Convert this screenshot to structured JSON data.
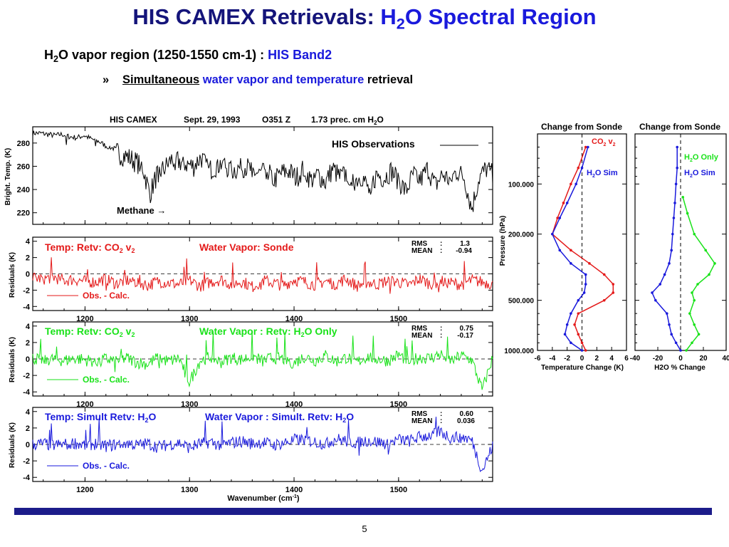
{
  "slide": {
    "title_main": "HIS CAMEX Retrievals: ",
    "title_h": "H",
    "title_sub": "2",
    "title_rest": "O Spectral Region",
    "bullet1_h": "H",
    "bullet1_sub": "2",
    "bullet1_rest": "O vapor region (1250-1550 cm-1) : ",
    "bullet1_band": "HIS Band2",
    "bullet2_marker": "»",
    "bullet2_underlined": "Simultaneous",
    "bullet2_blue": " water vapor and temperature",
    "bullet2_rest": " retrieval",
    "page_number": "5",
    "colors": {
      "title": "#14147a",
      "blue": "#1a1adc",
      "red": "#e41a1a",
      "green": "#1ae21a",
      "bar": "#1c1c8a"
    }
  },
  "chart_data": [
    {
      "type": "line",
      "panel": "brightness-temperature",
      "title": "HIS CAMEX     Sept. 29, 1993  O351 Z     1.73 prec. cm H2O",
      "ylabel": "Bright. Temp. (K)",
      "xlabel": "",
      "xlim": [
        1150,
        1590
      ],
      "ylim": [
        210,
        294
      ],
      "yticks": [
        220,
        240,
        260,
        280
      ],
      "series": [
        {
          "name": "HIS Observations",
          "color": "#000000",
          "x": [
            1150,
            1157,
            1164,
            1171,
            1178,
            1185,
            1192,
            1199,
            1206,
            1213,
            1220,
            1227,
            1234,
            1241,
            1248,
            1255,
            1262,
            1269,
            1276,
            1283,
            1290,
            1297,
            1304,
            1311,
            1318,
            1325,
            1332,
            1339,
            1346,
            1353,
            1360,
            1367,
            1374,
            1381,
            1388,
            1395,
            1402,
            1409,
            1416,
            1423,
            1430,
            1437,
            1444,
            1451,
            1458,
            1465,
            1472,
            1479,
            1486,
            1493,
            1500,
            1507,
            1514,
            1521,
            1528,
            1535,
            1542,
            1549,
            1556,
            1563,
            1570,
            1577,
            1584,
            1590
          ],
          "y": [
            289,
            289,
            288,
            287,
            288,
            286,
            285,
            287,
            284,
            282,
            278,
            276,
            272,
            270,
            266,
            262,
            238,
            255,
            260,
            268,
            266,
            264,
            262,
            270,
            258,
            262,
            265,
            258,
            260,
            262,
            258,
            255,
            260,
            250,
            256,
            258,
            252,
            260,
            250,
            255,
            248,
            260,
            252,
            256,
            250,
            254,
            240,
            255,
            252,
            258,
            250,
            240,
            255,
            250,
            260,
            245,
            255,
            250,
            258,
            252,
            225,
            252,
            260,
            255
          ]
        }
      ],
      "annotations": [
        "HIS Observations",
        "Methane →"
      ]
    },
    {
      "type": "line",
      "panel": "residuals-1",
      "title": "Temp: Retv: CO2 v2          Water Vapor: Sonde",
      "ylabel": "Residuals (K)",
      "xlim": [
        1150,
        1590
      ],
      "ylim": [
        -4.5,
        4.5
      ],
      "yticks": [
        -4,
        -2,
        0,
        2,
        4
      ],
      "legend": "Obs. -  Calc.",
      "rms": "1.3",
      "mean": "-0.94",
      "series": [
        {
          "name": "Obs. - Calc.",
          "color": "#e41a1a",
          "x": [
            1150,
            1160,
            1170,
            1180,
            1190,
            1200,
            1210,
            1220,
            1230,
            1240,
            1250,
            1260,
            1270,
            1280,
            1290,
            1300,
            1310,
            1320,
            1330,
            1340,
            1350,
            1360,
            1370,
            1380,
            1390,
            1400,
            1410,
            1420,
            1430,
            1440,
            1450,
            1460,
            1470,
            1480,
            1490,
            1500,
            1510,
            1520,
            1530,
            1540,
            1550,
            1560,
            1570,
            1580,
            1590
          ],
          "y": [
            -0.5,
            -0.6,
            -0.4,
            -0.8,
            -0.7,
            -0.9,
            -1.0,
            -0.6,
            -1.2,
            -0.8,
            -1.0,
            -1.4,
            -0.9,
            -1.1,
            -1.3,
            -0.8,
            -1.5,
            -1.0,
            -0.7,
            -1.3,
            -0.9,
            -1.6,
            -0.8,
            -1.1,
            -1.4,
            -0.7,
            -1.0,
            -1.3,
            -0.9,
            -1.2,
            -0.6,
            -1.5,
            -1.0,
            -1.3,
            -0.8,
            -1.0,
            -1.4,
            -0.6,
            -1.2,
            -0.9,
            -1.1,
            -1.3,
            -0.8,
            -1.0,
            -1.2
          ]
        }
      ]
    },
    {
      "type": "line",
      "panel": "residuals-2",
      "title": "Temp: Retv: CO2 v2          Water Vapor : Retv: H2O Only",
      "ylabel": "Residuals (K)",
      "xlim": [
        1150,
        1590
      ],
      "ylim": [
        -4.5,
        4.5
      ],
      "yticks": [
        -4,
        -2,
        0,
        2,
        4
      ],
      "legend": "Obs. - Calc.",
      "rms": "0.75",
      "mean": "-0.17",
      "series": [
        {
          "name": "Obs. - Calc.",
          "color": "#1ae21a",
          "x": [
            1150,
            1160,
            1170,
            1180,
            1190,
            1200,
            1210,
            1220,
            1230,
            1240,
            1250,
            1260,
            1270,
            1280,
            1290,
            1300,
            1310,
            1320,
            1330,
            1340,
            1350,
            1360,
            1370,
            1380,
            1390,
            1400,
            1410,
            1420,
            1430,
            1440,
            1450,
            1460,
            1470,
            1480,
            1490,
            1500,
            1510,
            1520,
            1530,
            1540,
            1550,
            1560,
            1570,
            1580,
            1590
          ],
          "y": [
            0.1,
            -0.1,
            0.0,
            -0.2,
            0.1,
            -0.1,
            -0.3,
            0.0,
            -0.2,
            0.1,
            -0.4,
            -0.6,
            0.2,
            -0.3,
            0.1,
            -2.8,
            -0.2,
            0.3,
            -0.4,
            0.2,
            -0.1,
            0.4,
            -0.3,
            0.2,
            0.0,
            -0.5,
            0.3,
            -0.2,
            0.4,
            -0.3,
            0.2,
            -0.4,
            0.3,
            0.0,
            -0.2,
            0.5,
            -0.3,
            0.2,
            0.1,
            0.6,
            -0.2,
            0.4,
            -0.1,
            -3.8,
            0.2
          ]
        }
      ]
    },
    {
      "type": "line",
      "panel": "residuals-3",
      "title": "Temp: Simult Retv:  H2O     Water Vapor : Simult. Retv: H2O",
      "ylabel": "Residuals (K)",
      "xlabel": "Wavenumber (cm-1)",
      "xlim": [
        1150,
        1590
      ],
      "ylim": [
        -4.5,
        4.5
      ],
      "yticks": [
        -4,
        -2,
        0,
        2,
        4
      ],
      "xticks": [
        1200,
        1300,
        1400,
        1500
      ],
      "legend": "Obs. - Calc.",
      "rms": "0.60",
      "mean": "0.036",
      "series": [
        {
          "name": "Obs. - Calc.",
          "color": "#1a1adc",
          "x": [
            1150,
            1160,
            1170,
            1180,
            1190,
            1200,
            1210,
            1220,
            1230,
            1240,
            1250,
            1260,
            1270,
            1280,
            1290,
            1300,
            1310,
            1320,
            1330,
            1340,
            1350,
            1360,
            1370,
            1380,
            1390,
            1400,
            1410,
            1420,
            1430,
            1440,
            1450,
            1460,
            1470,
            1480,
            1490,
            1500,
            1510,
            1520,
            1530,
            1540,
            1550,
            1560,
            1570,
            1580,
            1590
          ],
          "y": [
            0.0,
            0.1,
            -0.1,
            0.0,
            0.2,
            -0.1,
            0.1,
            -0.2,
            0.0,
            0.2,
            -0.1,
            0.1,
            -0.3,
            0.0,
            0.2,
            -0.4,
            0.1,
            0.3,
            -0.1,
            0.2,
            0.4,
            0.1,
            0.3,
            -0.1,
            0.2,
            0.5,
            0.6,
            0.3,
            0.1,
            0.7,
            0.4,
            0.2,
            0.5,
            0.3,
            0.1,
            0.6,
            0.4,
            0.9,
            1.1,
            1.6,
            0.8,
            1.0,
            0.5,
            -3.2,
            -0.2
          ]
        }
      ]
    },
    {
      "type": "line",
      "panel": "temperature-change-profile",
      "title": "Change from Sonde",
      "ylabel": "Pressure (hPa)",
      "xlabel": "Temperature Change (K)",
      "xlim": [
        -6,
        6
      ],
      "ylim": [
        1000,
        50
      ],
      "yscale": "log",
      "yticks": [
        100,
        200,
        500,
        1000
      ],
      "ytick_labels": [
        "100.000",
        "200.000",
        "500.000",
        "1000.000"
      ],
      "xticks": [
        -6,
        -4,
        -2,
        0,
        2,
        4,
        6
      ],
      "xtick_labels": [
        "-6",
        "-4",
        "-2",
        "0",
        "2",
        "4",
        "6"
      ],
      "series": [
        {
          "name": "CO2 v2",
          "color": "#e41a1a",
          "pressure": [
            60,
            80,
            100,
            130,
            160,
            200,
            250,
            300,
            350,
            400,
            450,
            500,
            600,
            700,
            800,
            900,
            1000
          ],
          "value": [
            0.5,
            -0.5,
            -1.5,
            -2.5,
            -3.3,
            -4.0,
            -1.5,
            1.0,
            3.0,
            4.2,
            4.2,
            3.0,
            -0.5,
            -1.0,
            -0.5,
            0.0,
            0.5
          ]
        },
        {
          "name": "H2O Sim",
          "color": "#1a1adc",
          "pressure": [
            60,
            80,
            100,
            130,
            160,
            200,
            250,
            300,
            350,
            400,
            450,
            500,
            600,
            700,
            800,
            900,
            1000
          ],
          "value": [
            0.8,
            0.0,
            -0.8,
            -2.0,
            -3.0,
            -4.0,
            -3.0,
            -1.5,
            0.5,
            0.5,
            0.3,
            -0.5,
            -1.5,
            -2.0,
            -2.3,
            -1.5,
            0.0
          ]
        }
      ]
    },
    {
      "type": "line",
      "panel": "h2o-change-profile",
      "title": "Change from Sonde",
      "xlabel": "H2O %  Change",
      "xlim": [
        -40,
        40
      ],
      "ylim": [
        1000,
        50
      ],
      "yscale": "log",
      "xticks": [
        -40,
        -20,
        0,
        20,
        40
      ],
      "xtick_labels": [
        "-40",
        "-20",
        "0",
        "20",
        "40"
      ],
      "series": [
        {
          "name": "H2O Only",
          "color": "#1ae21a",
          "pressure": [
            120,
            150,
            200,
            250,
            300,
            350,
            400,
            450,
            500,
            600,
            700,
            800,
            900,
            1000
          ],
          "value": [
            2,
            6,
            12,
            22,
            30,
            25,
            15,
            10,
            12,
            8,
            12,
            16,
            10,
            5
          ]
        },
        {
          "name": "H2O Sim",
          "color": "#1a1adc",
          "pressure": [
            60,
            80,
            100,
            130,
            160,
            200,
            250,
            300,
            350,
            400,
            450,
            500,
            600,
            700,
            800,
            900,
            1000
          ],
          "value": [
            -3,
            -3,
            -4,
            -5,
            -6,
            -7,
            -8,
            -10,
            -14,
            -18,
            -25,
            -22,
            -12,
            -10,
            -8,
            -4,
            0
          ]
        }
      ]
    }
  ],
  "labels": {
    "panel1_title_a": "HIS CAMEX",
    "panel1_title_b": "Sept. 29, 1993",
    "panel1_title_c": "O351 Z",
    "panel1_title_d": "1.73 prec. cm H",
    "panel1_title_d_sub": "2",
    "panel1_title_d_end": "O",
    "panel1_ylabel": "Bright. Temp. (K)",
    "his_obs": "HIS Observations",
    "methane": "Methane →",
    "res_ylabel": "Residuals (K)",
    "p2_temp": "Temp: Retv: CO",
    "p2_temp_sub": "2",
    "p2_temp_end": " v",
    "p2_temp_end_sub": "2",
    "p2_wv": "Water Vapor: Sonde",
    "p2_legend": "Obs. -  Calc.",
    "p3_temp": "Temp: Retv: CO",
    "p3_temp_sub": "2",
    "p3_temp_end": " v",
    "p3_temp_end_sub": "2",
    "p3_wv": "Water Vapor : Retv: H",
    "p3_wv_sub": "2",
    "p3_wv_end": "O Only",
    "p3_legend": "Obs. - Calc.",
    "p4_temp": "Temp: Simult Retv:  H",
    "p4_temp_sub": "2",
    "p4_temp_end": "O",
    "p4_wv": "Water Vapor : Simult. Retv: H",
    "p4_wv_sub": "2",
    "p4_wv_end": "O",
    "p4_legend": "Obs. - Calc.",
    "rms_label": "RMS",
    "mean_label": "MEAN",
    "colon": ":",
    "xlabel_main": "Wavenumber (cm",
    "xlabel_main_sup": "-1",
    "xlabel_main_end": ")",
    "prof_title": "Change from Sonde",
    "prof_ylabel": "Pressure (hPa)",
    "prof_xlabel_t": "Temperature Change (K)",
    "prof_xlabel_h": "H2O %  Change",
    "leg_co2": "CO",
    "leg_co2_sub": "2",
    "leg_co2_end": " v",
    "leg_co2_end_sub": "2",
    "leg_h2osim": "H",
    "leg_h2osim_sub": "2",
    "leg_h2osim_end": "O Sim",
    "leg_h2oonly": "H",
    "leg_h2oonly_sub": "2",
    "leg_h2oonly_end": "O Only"
  }
}
